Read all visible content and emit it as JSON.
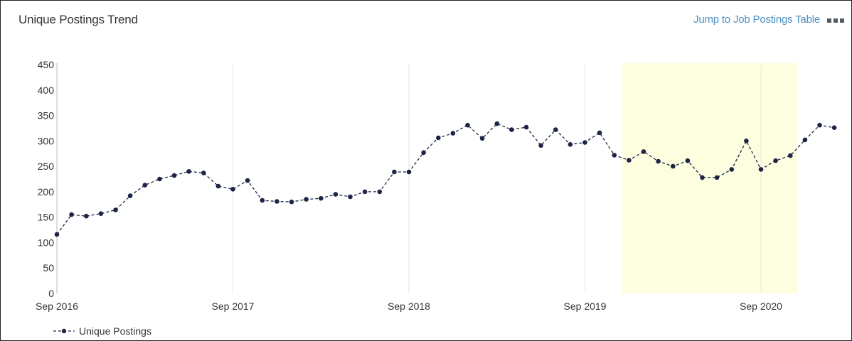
{
  "card": {
    "title": "Unique Postings Trend",
    "jump_link": "Jump to Job Postings Table",
    "menu_icon": "more-menu-icon"
  },
  "colors": {
    "line": "#1d2545",
    "highlight": "#fdfde0",
    "gridline": "#e6e6e6",
    "link": "#4a90c2"
  },
  "chart_data": {
    "type": "line",
    "title": "",
    "xlabel": "",
    "ylabel": "",
    "ylim": [
      0,
      450
    ],
    "y_ticks": [
      "0",
      "50",
      "100",
      "150",
      "200",
      "250",
      "300",
      "350",
      "400",
      "450"
    ],
    "x_ticks": [
      "Sep 2016",
      "Sep 2017",
      "Sep 2018",
      "Sep 2019",
      "Sep 2020"
    ],
    "grid_x": true,
    "grid_y": false,
    "legend_position": "bottom-left",
    "highlight_range": [
      "2019-12",
      "2020-11"
    ],
    "x": [
      "2016-09",
      "2016-10",
      "2016-11",
      "2016-12",
      "2017-01",
      "2017-02",
      "2017-03",
      "2017-04",
      "2017-05",
      "2017-06",
      "2017-07",
      "2017-08",
      "2017-09",
      "2017-10",
      "2017-11",
      "2017-12",
      "2018-01",
      "2018-02",
      "2018-03",
      "2018-04",
      "2018-05",
      "2018-06",
      "2018-07",
      "2018-08",
      "2018-09",
      "2018-10",
      "2018-11",
      "2018-12",
      "2019-01",
      "2019-02",
      "2019-03",
      "2019-04",
      "2019-05",
      "2019-06",
      "2019-07",
      "2019-08",
      "2019-09",
      "2019-10",
      "2019-11",
      "2019-12",
      "2020-01",
      "2020-02",
      "2020-03",
      "2020-04",
      "2020-05",
      "2020-06",
      "2020-07",
      "2020-08",
      "2020-09",
      "2020-10",
      "2020-11",
      "2020-12",
      "2021-01",
      "2021-02"
    ],
    "series": [
      {
        "name": "Unique Postings",
        "values": [
          116,
          155,
          152,
          157,
          164,
          192,
          213,
          225,
          232,
          240,
          237,
          211,
          205,
          222,
          183,
          181,
          180,
          185,
          187,
          195,
          190,
          200,
          200,
          239,
          239,
          277,
          306,
          315,
          331,
          305,
          334,
          322,
          327,
          291,
          322,
          293,
          297,
          316,
          272,
          262,
          279,
          260,
          250,
          261,
          228,
          228,
          244,
          300,
          244,
          261,
          271,
          302,
          331,
          326
        ]
      }
    ]
  }
}
